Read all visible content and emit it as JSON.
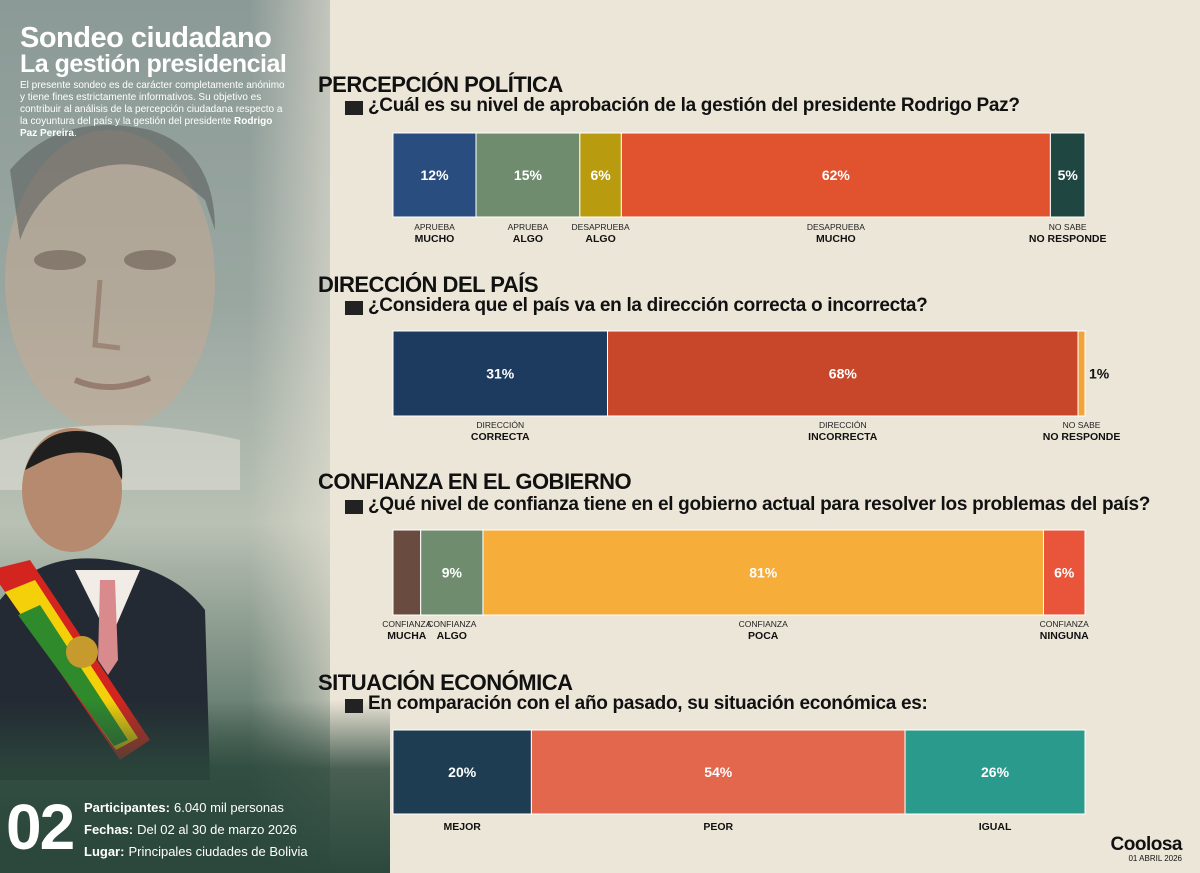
{
  "header": {
    "title": "Sondeo ciudadano",
    "subtitle": "La gestión presidencial",
    "intro_1": "El presente sondeo es de carácter completamente anónimo y tiene fines estrictamente informativos. Su objetivo es contribuir al análisis de la percepción ciudadana respecto a la coyuntura del país y la gestión del presidente ",
    "intro_name": "Rodrigo Paz Pereira",
    "intro_end": "."
  },
  "footer": {
    "number": "02",
    "participants_key": "Participantes:",
    "participants_val": "6.040 mil personas",
    "dates_key": "Fechas:",
    "dates_val": "Del 02 al 30 de marzo 2026",
    "place_key": "Lugar:",
    "place_val": "Principales ciudades de Bolivia",
    "brand": "Coolosa",
    "date": "01 ABRIL 2026"
  },
  "colors": {
    "background": "#ece6d8",
    "dark_navy": "#2a4d7f",
    "sage": "#6f8d6e",
    "mustard": "#b89b0e",
    "red_orange": "#e0532e",
    "dark_green": "#1f4640"
  },
  "chart_data": [
    {
      "type": "bar",
      "orientation": "horizontal-stacked",
      "section": "PERCEPCIÓN POLÍTICA",
      "question": "¿Cuál es su nivel de aprobación de la gestión del presidente Rodrigo Paz?",
      "segments": [
        {
          "value": 12,
          "label": "12%",
          "line1": "APRUEBA",
          "line2": "MUCHO",
          "color": "#2a4d7f"
        },
        {
          "value": 15,
          "label": "15%",
          "line1": "APRUEBA",
          "line2": "ALGO",
          "color": "#6f8d6e"
        },
        {
          "value": 6,
          "label": "6%",
          "line1": "DESAPRUEBA",
          "line2": "ALGO",
          "color": "#b89b0e"
        },
        {
          "value": 62,
          "label": "62%",
          "line1": "DESAPRUEBA",
          "line2": "MUCHO",
          "color": "#e0532e"
        },
        {
          "value": 5,
          "label": "5%",
          "line1": "NO SABE",
          "line2": "NO RESPONDE",
          "color": "#1f4640"
        }
      ]
    },
    {
      "type": "bar",
      "orientation": "horizontal-stacked",
      "section": "DIRECCIÓN DEL PAÍS",
      "question": "¿Considera que el país va en la dirección correcta o incorrecta?",
      "segments": [
        {
          "value": 31,
          "label": "31%",
          "line1": "DIRECCIÓN",
          "line2": "CORRECTA",
          "color": "#1d3b5e"
        },
        {
          "value": 68,
          "label": "68%",
          "line1": "DIRECCIÓN",
          "line2": "INCORRECTA",
          "color": "#c8472b"
        },
        {
          "value": 1,
          "label": "1%",
          "line1": "NO SABE",
          "line2": "NO RESPONDE",
          "color": "#f2a33a"
        }
      ]
    },
    {
      "type": "bar",
      "orientation": "horizontal-stacked",
      "section": "CONFIANZA EN EL GOBIERNO",
      "question": "¿Qué nivel de confianza tiene en el gobierno actual para resolver los problemas del país?",
      "segments": [
        {
          "value": 4,
          "label": "4%",
          "line1": "CONFIANZA",
          "line2": "MUCHA",
          "color": "#6a4b3f"
        },
        {
          "value": 9,
          "label": "9%",
          "line1": "CONFIANZA",
          "line2": "ALGO",
          "color": "#6f8d6e"
        },
        {
          "value": 81,
          "label": "81%",
          "line1": "CONFIANZA",
          "line2": "POCA",
          "color": "#f7ad39"
        },
        {
          "value": 6,
          "label": "6%",
          "line1": "CONFIANZA",
          "line2": "NINGUNA",
          "color": "#e8553a"
        }
      ]
    },
    {
      "type": "bar",
      "orientation": "horizontal-stacked",
      "section": "SITUACIÓN ECONÓMICA",
      "question": "En comparación con el año pasado, su situación económica es:",
      "segments": [
        {
          "value": 20,
          "label": "20%",
          "line1": "",
          "line2": "MEJOR",
          "color": "#1e3d52"
        },
        {
          "value": 54,
          "label": "54%",
          "line1": "",
          "line2": "PEOR",
          "color": "#e2674c"
        },
        {
          "value": 26,
          "label": "26%",
          "line1": "",
          "line2": "IGUAL",
          "color": "#2a9a8c"
        }
      ]
    }
  ]
}
